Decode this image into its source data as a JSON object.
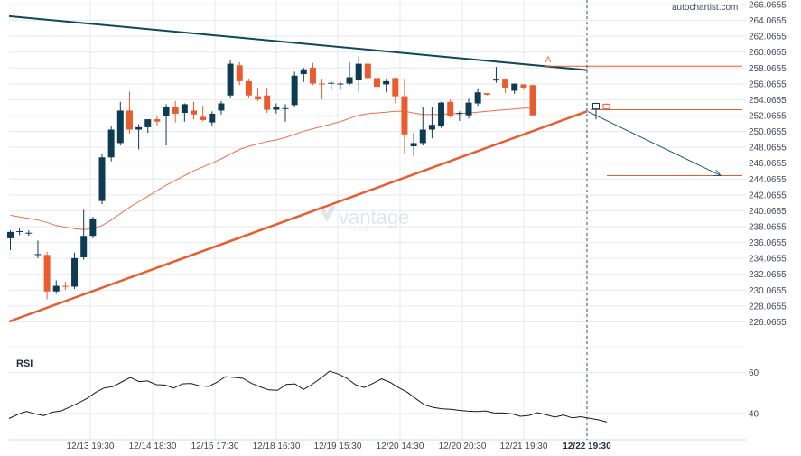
{
  "brand": "autochartist.com",
  "watermark": {
    "name": "vantage",
    "sub": "PLUS"
  },
  "colors": {
    "bull": "#0d3b52",
    "bear": "#e85c2e",
    "resistance": "#0d4a55",
    "support": "#e85c2e",
    "ma": "#e8704a",
    "arrow": "#1b5a6e",
    "rsi": "#1a1a1a",
    "grid": "#e6e9ec"
  },
  "chart_data": {
    "type": "candlestick",
    "price_axis": {
      "ylim": [
        224.0655,
        266.0655
      ],
      "tick_labels": [
        "266.0655",
        "264.0655",
        "262.0655",
        "260.0655",
        "258.0655",
        "256.0655",
        "254.0655",
        "252.0655",
        "250.0655",
        "248.0655",
        "246.0655",
        "244.0655",
        "242.0655",
        "240.0655",
        "238.0655",
        "236.0655",
        "234.0655",
        "232.0655",
        "230.0655",
        "228.0655",
        "226.0655"
      ]
    },
    "x_tick_labels": [
      "12/13 19:30",
      "12/14 18:30",
      "12/15 17:30",
      "12/18 16:30",
      "12/19 15:30",
      "12/20 14:30",
      "12/20 20:30",
      "12/21 19:30",
      "12/22 19:30"
    ],
    "current_time_label": "12/22 19:30",
    "candles": [
      {
        "o": 236.6,
        "h": 237.6,
        "l": 235.1,
        "c": 237.4
      },
      {
        "o": 237.4,
        "h": 237.9,
        "l": 237.0,
        "c": 237.5
      },
      {
        "o": 237.3,
        "h": 237.6,
        "l": 236.9,
        "c": 237.3
      },
      {
        "o": 234.5,
        "h": 236.3,
        "l": 234.1,
        "c": 234.6
      },
      {
        "o": 234.5,
        "h": 234.9,
        "l": 228.9,
        "c": 229.9
      },
      {
        "o": 229.9,
        "h": 231.3,
        "l": 229.6,
        "c": 230.6
      },
      {
        "o": 230.6,
        "h": 231.1,
        "l": 230.1,
        "c": 230.5
      },
      {
        "o": 230.5,
        "h": 234.8,
        "l": 230.2,
        "c": 234.1
      },
      {
        "o": 234.2,
        "h": 240.2,
        "l": 233.9,
        "c": 236.9
      },
      {
        "o": 236.9,
        "h": 239.3,
        "l": 236.6,
        "c": 239.1
      },
      {
        "o": 241.3,
        "h": 247.3,
        "l": 240.9,
        "c": 246.8
      },
      {
        "o": 246.8,
        "h": 250.7,
        "l": 246.3,
        "c": 250.3
      },
      {
        "o": 248.6,
        "h": 253.8,
        "l": 248.3,
        "c": 252.7
      },
      {
        "o": 252.7,
        "h": 255.1,
        "l": 249.8,
        "c": 250.3
      },
      {
        "o": 250.3,
        "h": 251.0,
        "l": 247.8,
        "c": 250.6
      },
      {
        "o": 250.6,
        "h": 251.6,
        "l": 249.9,
        "c": 251.6
      },
      {
        "o": 251.6,
        "h": 252.1,
        "l": 250.8,
        "c": 251.3
      },
      {
        "o": 252.0,
        "h": 253.5,
        "l": 248.3,
        "c": 253.1
      },
      {
        "o": 253.1,
        "h": 253.9,
        "l": 251.2,
        "c": 252.3
      },
      {
        "o": 252.4,
        "h": 253.6,
        "l": 251.3,
        "c": 253.5
      },
      {
        "o": 252.7,
        "h": 253.8,
        "l": 251.6,
        "c": 252.2
      },
      {
        "o": 251.9,
        "h": 253.3,
        "l": 251.3,
        "c": 251.5
      },
      {
        "o": 251.2,
        "h": 252.6,
        "l": 250.8,
        "c": 252.3
      },
      {
        "o": 252.7,
        "h": 253.9,
        "l": 252.2,
        "c": 253.6
      },
      {
        "o": 254.6,
        "h": 259.1,
        "l": 254.3,
        "c": 258.6
      },
      {
        "o": 258.4,
        "h": 258.8,
        "l": 255.9,
        "c": 256.4
      },
      {
        "o": 256.4,
        "h": 256.7,
        "l": 254.3,
        "c": 254.6
      },
      {
        "o": 254.5,
        "h": 255.6,
        "l": 253.9,
        "c": 254.1
      },
      {
        "o": 254.6,
        "h": 255.5,
        "l": 252.4,
        "c": 252.8
      },
      {
        "o": 252.8,
        "h": 253.6,
        "l": 252.3,
        "c": 253.2
      },
      {
        "o": 253.0,
        "h": 253.5,
        "l": 251.3,
        "c": 253.0
      },
      {
        "o": 253.4,
        "h": 257.6,
        "l": 253.2,
        "c": 257.1
      },
      {
        "o": 257.3,
        "h": 258.1,
        "l": 256.3,
        "c": 257.9
      },
      {
        "o": 258.1,
        "h": 258.7,
        "l": 255.9,
        "c": 256.1
      },
      {
        "o": 256.1,
        "h": 256.6,
        "l": 254.1,
        "c": 256.0
      },
      {
        "o": 256.2,
        "h": 256.4,
        "l": 255.3,
        "c": 256.2
      },
      {
        "o": 256.1,
        "h": 256.3,
        "l": 255.3,
        "c": 256.1
      },
      {
        "o": 256.1,
        "h": 258.8,
        "l": 255.9,
        "c": 256.9
      },
      {
        "o": 256.5,
        "h": 259.5,
        "l": 255.1,
        "c": 258.6
      },
      {
        "o": 258.6,
        "h": 259.1,
        "l": 256.4,
        "c": 256.8
      },
      {
        "o": 256.8,
        "h": 257.4,
        "l": 255.4,
        "c": 255.7
      },
      {
        "o": 256.0,
        "h": 256.6,
        "l": 255.0,
        "c": 256.4
      },
      {
        "o": 256.8,
        "h": 256.9,
        "l": 253.6,
        "c": 254.5
      },
      {
        "o": 254.5,
        "h": 256.6,
        "l": 247.3,
        "c": 249.7
      },
      {
        "o": 248.2,
        "h": 249.9,
        "l": 247.0,
        "c": 248.6
      },
      {
        "o": 248.6,
        "h": 253.2,
        "l": 248.3,
        "c": 250.3
      },
      {
        "o": 250.3,
        "h": 253.1,
        "l": 249.2,
        "c": 250.9
      },
      {
        "o": 250.8,
        "h": 253.8,
        "l": 250.5,
        "c": 253.7
      },
      {
        "o": 253.8,
        "h": 254.1,
        "l": 251.8,
        "c": 252.0
      },
      {
        "o": 252.3,
        "h": 252.6,
        "l": 251.4,
        "c": 252.4
      },
      {
        "o": 252.1,
        "h": 254.2,
        "l": 251.7,
        "c": 253.7
      },
      {
        "o": 253.6,
        "h": 255.4,
        "l": 253.3,
        "c": 255.0
      },
      {
        "o": 254.9,
        "h": 254.9,
        "l": 254.6,
        "c": 254.7
      },
      {
        "o": 256.6,
        "h": 258.2,
        "l": 256.2,
        "c": 256.6
      },
      {
        "o": 256.6,
        "h": 256.8,
        "l": 254.9,
        "c": 255.6
      },
      {
        "o": 255.2,
        "h": 256.0,
        "l": 254.8,
        "c": 256.1
      },
      {
        "o": 256.0,
        "h": 256.0,
        "l": 255.3,
        "c": 255.6
      },
      {
        "o": 255.9,
        "h": 256.0,
        "l": 252.1,
        "c": 252.1
      }
    ],
    "projected_candles": [
      {
        "o": 252.9,
        "h": 253.7,
        "l": 251.6,
        "c": 253.6
      },
      {
        "o": 253.5,
        "h": 253.6,
        "l": 252.7,
        "c": 252.9
      }
    ],
    "moving_average": [
      239.5,
      239.3,
      239.1,
      238.9,
      238.6,
      238.2,
      238.0,
      237.8,
      237.7,
      237.8,
      238.2,
      238.9,
      239.7,
      240.5,
      241.2,
      241.9,
      242.6,
      243.3,
      243.9,
      244.5,
      245.1,
      245.6,
      246.1,
      246.6,
      247.2,
      247.8,
      248.2,
      248.5,
      248.8,
      249.0,
      249.3,
      249.7,
      250.1,
      250.4,
      250.7,
      251.0,
      251.3,
      251.7,
      252.1,
      252.3,
      252.4,
      252.5,
      252.6,
      252.6,
      252.4,
      252.2,
      252.2,
      252.2,
      252.3,
      252.3,
      252.4,
      252.5,
      252.6,
      252.7,
      252.8,
      252.9,
      253.0,
      253.0
    ],
    "rsi": {
      "label": "RSI",
      "tick_labels": [
        "60",
        "40"
      ],
      "ylim": [
        28,
        70
      ],
      "values": [
        37.5,
        39.5,
        41.0,
        39.8,
        38.9,
        40.6,
        41.2,
        43.1,
        45.1,
        47.3,
        50.3,
        52.5,
        53.1,
        55.4,
        57.6,
        55.6,
        55.9,
        54.1,
        53.9,
        52.4,
        54.5,
        54.7,
        53.5,
        53.2,
        55.3,
        58.0,
        57.6,
        57.2,
        54.7,
        53.0,
        51.5,
        51.3,
        54.2,
        54.5,
        51.7,
        54.3,
        57.3,
        60.7,
        59.3,
        57.2,
        54.0,
        52.7,
        54.7,
        56.9,
        55.2,
        52.6,
        50.3,
        47.1,
        44.1,
        42.9,
        42.3,
        42.0,
        41.5,
        41.1,
        40.9,
        41.2,
        40.2,
        40.3,
        39.8,
        38.6,
        39.0,
        40.4,
        39.3,
        38.2,
        39.2,
        37.8,
        38.4,
        37.6,
        36.9,
        35.8
      ]
    },
    "patterns": {
      "resistance_line": {
        "start_price": 264.6,
        "end_price": 257.8
      },
      "support_line": {
        "start_price": 226.1,
        "end_price": 252.6
      },
      "resistance_level": 258.3,
      "current_level": 252.8,
      "target_level": 244.5,
      "marker_label": "A"
    }
  }
}
